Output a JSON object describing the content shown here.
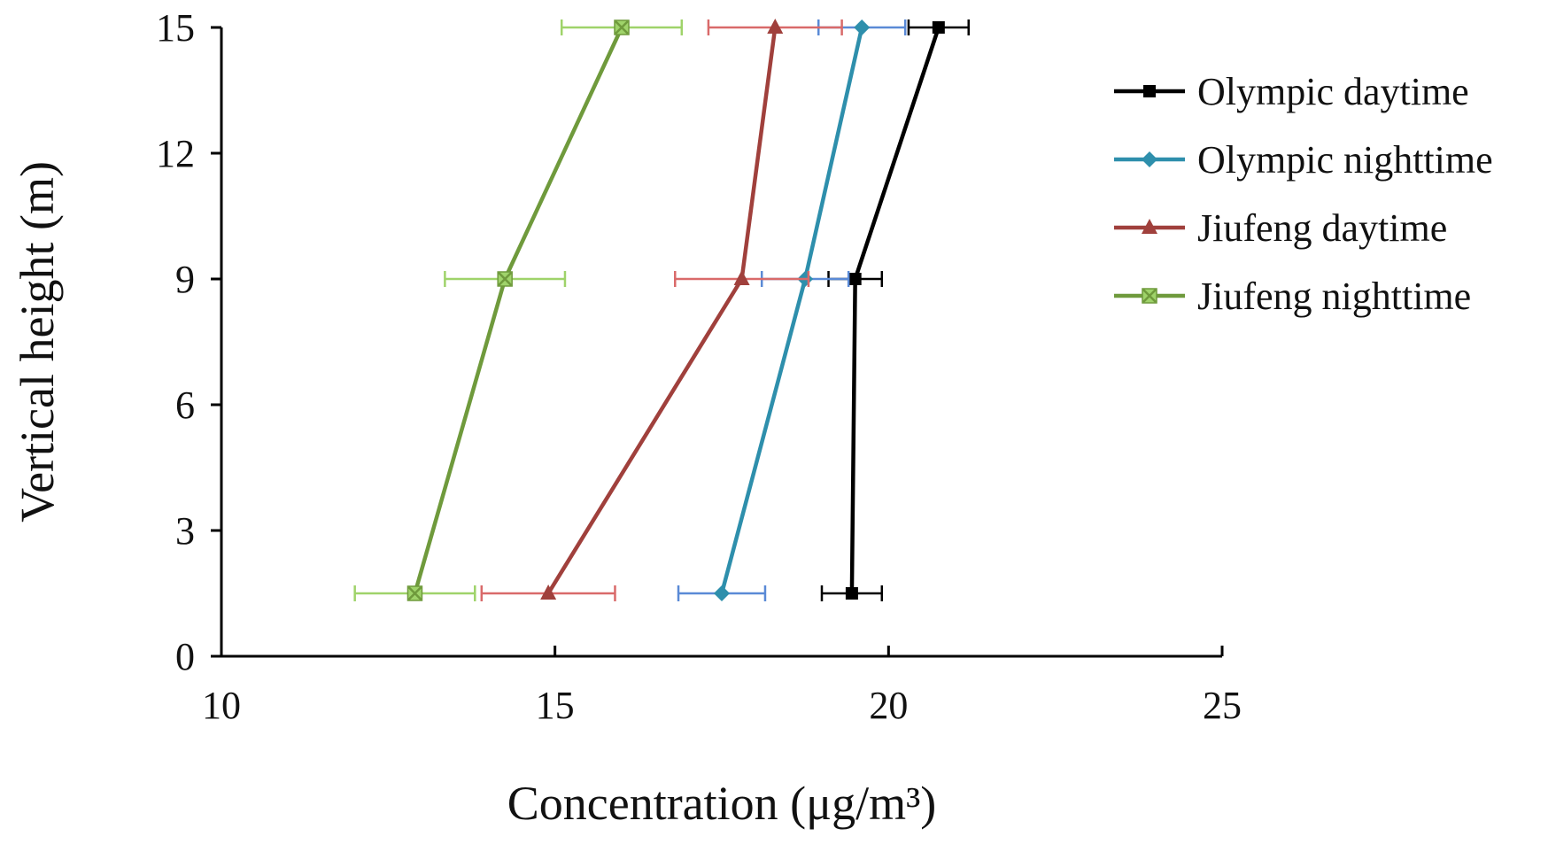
{
  "chart_data": {
    "type": "line",
    "title": "",
    "xlabel": "Concentration (μg/m³)",
    "ylabel": "Vertical height (m)",
    "xlim": [
      10,
      25
    ],
    "ylim": [
      0,
      15
    ],
    "xticks": [
      "10",
      "15",
      "20",
      "25"
    ],
    "yticks": [
      "0",
      "3",
      "6",
      "9",
      "12",
      "15"
    ],
    "legend_position": "right",
    "grid": false,
    "series": [
      {
        "name": "Olympic daytime",
        "color": "#000000",
        "bar_color": "#000000",
        "marker": "square",
        "points": [
          {
            "x": 19.45,
            "y": 1.5,
            "err": 0.45
          },
          {
            "x": 19.5,
            "y": 9,
            "err": 0.4
          },
          {
            "x": 20.75,
            "y": 15,
            "err": 0.45
          }
        ]
      },
      {
        "name": "Olympic nighttime",
        "color": "#2e8fac",
        "bar_color": "#5a8ad6",
        "marker": "diamond",
        "points": [
          {
            "x": 17.5,
            "y": 1.5,
            "err": 0.65
          },
          {
            "x": 18.75,
            "y": 9,
            "err": 0.65
          },
          {
            "x": 19.6,
            "y": 15,
            "err": 0.65
          }
        ]
      },
      {
        "name": "Jiufeng daytime",
        "color": "#a0403c",
        "bar_color": "#d96a6a",
        "marker": "triangle",
        "points": [
          {
            "x": 14.9,
            "y": 1.5,
            "err": 1.0
          },
          {
            "x": 17.8,
            "y": 9,
            "err": 1.0
          },
          {
            "x": 18.3,
            "y": 15,
            "err": 1.0
          }
        ]
      },
      {
        "name": "Jiufeng nighttime",
        "color": "#6f9a3c",
        "bar_color": "#9fd36a",
        "marker": "x-square",
        "points": [
          {
            "x": 12.9,
            "y": 1.5,
            "err": 0.9
          },
          {
            "x": 14.25,
            "y": 9,
            "err": 0.9
          },
          {
            "x": 16.0,
            "y": 15,
            "err": 0.9
          }
        ]
      }
    ]
  }
}
